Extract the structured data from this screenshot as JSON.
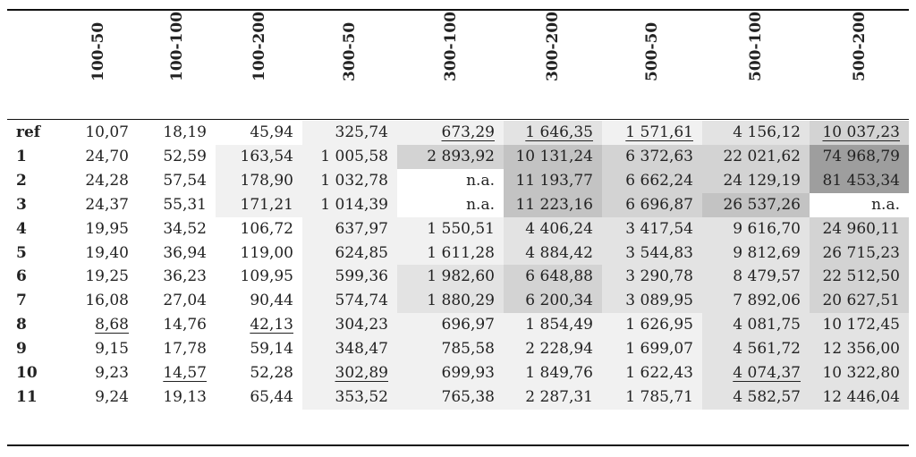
{
  "table": {
    "columns": [
      "100-50",
      "100-100",
      "100-200",
      "300-50",
      "300-100",
      "300-200",
      "500-50",
      "500-100",
      "500-200"
    ],
    "rows": [
      {
        "label": "ref",
        "cells": [
          {
            "v": "10,07"
          },
          {
            "v": "18,19"
          },
          {
            "v": "45,94"
          },
          {
            "v": "325,74",
            "s": 1
          },
          {
            "v": "673,29",
            "s": 1,
            "u": true
          },
          {
            "v": "1 646,35",
            "s": 2,
            "u": true
          },
          {
            "v": "1 571,61",
            "s": 1,
            "u": true
          },
          {
            "v": "4 156,12",
            "s": 2
          },
          {
            "v": "10 037,23",
            "s": 3,
            "u": true
          }
        ]
      },
      {
        "label": "1",
        "cells": [
          {
            "v": "24,70"
          },
          {
            "v": "52,59"
          },
          {
            "v": "163,54",
            "s": 1
          },
          {
            "v": "1 005,58",
            "s": 1
          },
          {
            "v": "2 893,92",
            "s": 3
          },
          {
            "v": "10 131,24",
            "s": 4
          },
          {
            "v": "6 372,63",
            "s": 3
          },
          {
            "v": "22 021,62",
            "s": 3
          },
          {
            "v": "74 968,79",
            "s": 5
          }
        ]
      },
      {
        "label": "2",
        "cells": [
          {
            "v": "24,28"
          },
          {
            "v": "57,54"
          },
          {
            "v": "178,90",
            "s": 1
          },
          {
            "v": "1 032,78",
            "s": 1
          },
          {
            "v": "n.a."
          },
          {
            "v": "11 193,77",
            "s": 4
          },
          {
            "v": "6 662,24",
            "s": 3
          },
          {
            "v": "24 129,19",
            "s": 3
          },
          {
            "v": "81 453,34",
            "s": 5
          }
        ]
      },
      {
        "label": "3",
        "cells": [
          {
            "v": "24,37"
          },
          {
            "v": "55,31"
          },
          {
            "v": "171,21",
            "s": 1
          },
          {
            "v": "1 014,39",
            "s": 1
          },
          {
            "v": "n.a."
          },
          {
            "v": "11 223,16",
            "s": 4
          },
          {
            "v": "6 696,87",
            "s": 3
          },
          {
            "v": "26 537,26",
            "s": 4
          },
          {
            "v": "n.a."
          }
        ]
      },
      {
        "label": "4",
        "cells": [
          {
            "v": "19,95"
          },
          {
            "v": "34,52"
          },
          {
            "v": "106,72"
          },
          {
            "v": "637,97",
            "s": 1
          },
          {
            "v": "1 550,51",
            "s": 1
          },
          {
            "v": "4 406,24",
            "s": 2
          },
          {
            "v": "3 417,54",
            "s": 2
          },
          {
            "v": "9 616,70",
            "s": 2
          },
          {
            "v": "24 960,11",
            "s": 3
          }
        ]
      },
      {
        "label": "5",
        "cells": [
          {
            "v": "19,40"
          },
          {
            "v": "36,94"
          },
          {
            "v": "119,00"
          },
          {
            "v": "624,85",
            "s": 1
          },
          {
            "v": "1 611,28",
            "s": 1
          },
          {
            "v": "4 884,42",
            "s": 2
          },
          {
            "v": "3 544,83",
            "s": 2
          },
          {
            "v": "9 812,69",
            "s": 2
          },
          {
            "v": "26 715,23",
            "s": 3
          }
        ]
      },
      {
        "label": "6",
        "cells": [
          {
            "v": "19,25"
          },
          {
            "v": "36,23"
          },
          {
            "v": "109,95"
          },
          {
            "v": "599,36",
            "s": 1
          },
          {
            "v": "1 982,60",
            "s": 2
          },
          {
            "v": "6 648,88",
            "s": 3
          },
          {
            "v": "3 290,78",
            "s": 2
          },
          {
            "v": "8 479,57",
            "s": 2
          },
          {
            "v": "22 512,50",
            "s": 3
          }
        ]
      },
      {
        "label": "7",
        "cells": [
          {
            "v": "16,08"
          },
          {
            "v": "27,04"
          },
          {
            "v": "90,44"
          },
          {
            "v": "574,74",
            "s": 1
          },
          {
            "v": "1 880,29",
            "s": 2
          },
          {
            "v": "6 200,34",
            "s": 3
          },
          {
            "v": "3 089,95",
            "s": 2
          },
          {
            "v": "7 892,06",
            "s": 2
          },
          {
            "v": "20 627,51",
            "s": 3
          }
        ]
      },
      {
        "label": "8",
        "cells": [
          {
            "v": "8,68",
            "u": true
          },
          {
            "v": "14,76"
          },
          {
            "v": "42,13",
            "u": true
          },
          {
            "v": "304,23",
            "s": 1
          },
          {
            "v": "696,97",
            "s": 1
          },
          {
            "v": "1 854,49",
            "s": 1
          },
          {
            "v": "1 626,95",
            "s": 1
          },
          {
            "v": "4 081,75",
            "s": 2
          },
          {
            "v": "10 172,45",
            "s": 2
          }
        ]
      },
      {
        "label": "9",
        "cells": [
          {
            "v": "9,15"
          },
          {
            "v": "17,78"
          },
          {
            "v": "59,14"
          },
          {
            "v": "348,47",
            "s": 1
          },
          {
            "v": "785,58",
            "s": 1
          },
          {
            "v": "2 228,94",
            "s": 1
          },
          {
            "v": "1 699,07",
            "s": 1
          },
          {
            "v": "4 561,72",
            "s": 2
          },
          {
            "v": "12 356,00",
            "s": 2
          }
        ]
      },
      {
        "label": "10",
        "cells": [
          {
            "v": "9,23"
          },
          {
            "v": "14,57",
            "u": true
          },
          {
            "v": "52,28"
          },
          {
            "v": "302,89",
            "s": 1,
            "u": true
          },
          {
            "v": "699,93",
            "s": 1
          },
          {
            "v": "1 849,76",
            "s": 1
          },
          {
            "v": "1 622,43",
            "s": 1
          },
          {
            "v": "4 074,37",
            "s": 2,
            "u": true
          },
          {
            "v": "10 322,80",
            "s": 2
          }
        ]
      },
      {
        "label": "11",
        "cells": [
          {
            "v": "9,24"
          },
          {
            "v": "19,13"
          },
          {
            "v": "65,44"
          },
          {
            "v": "353,52",
            "s": 1
          },
          {
            "v": "765,38",
            "s": 1
          },
          {
            "v": "2 287,31",
            "s": 1
          },
          {
            "v": "1 785,71",
            "s": 1
          },
          {
            "v": "4 582,57",
            "s": 2
          },
          {
            "v": "12 446,04",
            "s": 2
          }
        ]
      }
    ]
  },
  "colors": {
    "shades": [
      "#ffffff",
      "#f1f1f1",
      "#e3e3e3",
      "#d3d3d3",
      "#c3c3c3",
      "#9e9e9e"
    ]
  }
}
